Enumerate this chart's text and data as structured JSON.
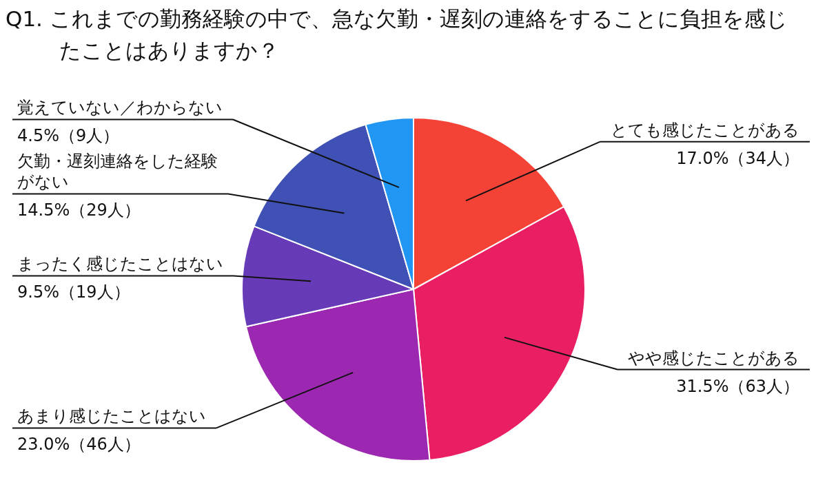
{
  "chart_data": {
    "type": "pie",
    "title": "Q1. これまでの勤務経験の中で、急な欠勤・遅刻の連絡をすることに負担を感じたことはありますか？",
    "categories": [
      "とても感じたことがある",
      "やや感じたことがある",
      "あまり感じたことはない",
      "まったく感じたことはない",
      "欠勤・遅刻連絡をした経験がない",
      "覚えていない／わからない"
    ],
    "values": [
      17.0,
      31.5,
      23.0,
      9.5,
      14.5,
      4.5
    ],
    "colors": [
      "#f44336",
      "#e91e63",
      "#9c27b0",
      "#673ab7",
      "#3f51b5",
      "#2196f3"
    ],
    "value_labels": [
      "17.0%（34人）",
      "31.5%（63人）",
      "23.0%（46人）",
      "9.5%（19人）",
      "14.5%（29人）",
      "4.5%（9人）"
    ]
  }
}
